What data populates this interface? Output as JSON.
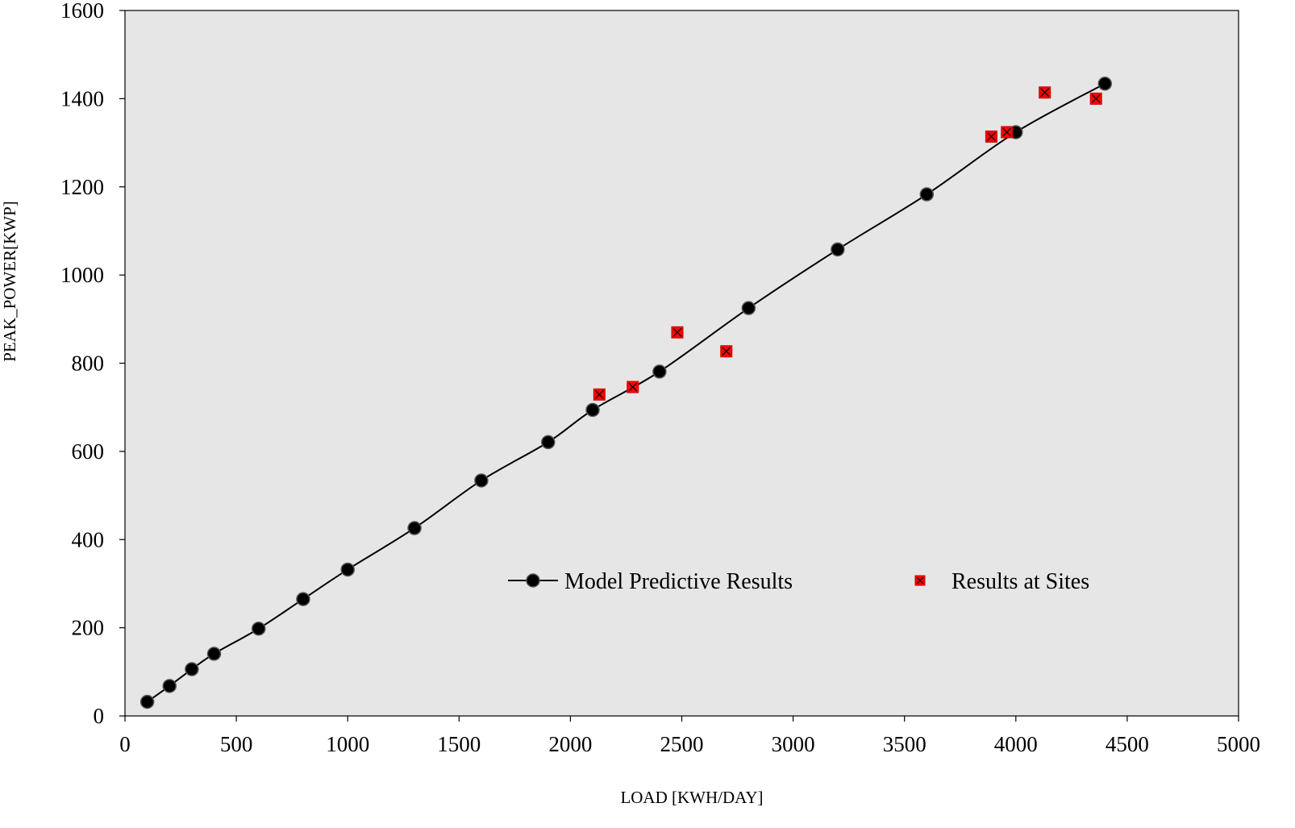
{
  "chart_data": {
    "type": "line",
    "title": "",
    "xlabel": "LOAD [KWH/DAY]",
    "ylabel": "PEAK_POWER[KWP]",
    "xlim": [
      0,
      5000
    ],
    "ylim": [
      0,
      1600
    ],
    "x_ticks": [
      "0",
      "500",
      "1000",
      "1500",
      "2000",
      "2500",
      "3000",
      "3500",
      "4000",
      "4500",
      "5000"
    ],
    "y_ticks": [
      "0",
      "200",
      "400",
      "600",
      "800",
      "1000",
      "1200",
      "1400",
      "1600"
    ],
    "grid": false,
    "plot_background": "#e6e6e6",
    "legend_placement": "center-right",
    "series": [
      {
        "name": "Model Predictive Results",
        "style": "line-with-circle-markers",
        "color": "#000000",
        "x": [
          100,
          200,
          300,
          400,
          600,
          800,
          1000,
          1300,
          1600,
          1900,
          2100,
          2400,
          2800,
          3200,
          3600,
          4000,
          4400
        ],
        "y": [
          32,
          68,
          106,
          141,
          198,
          265,
          332,
          426,
          534,
          621,
          694,
          781,
          925,
          1058,
          1183,
          1324,
          1434
        ]
      },
      {
        "name": "Results at Sites",
        "style": "square-x-markers",
        "color": "#ff0000",
        "x": [
          2130,
          2280,
          2480,
          2700,
          3890,
          3960,
          4130,
          4360
        ],
        "y": [
          729,
          746,
          870,
          827,
          1314,
          1324,
          1414,
          1400
        ]
      }
    ]
  }
}
